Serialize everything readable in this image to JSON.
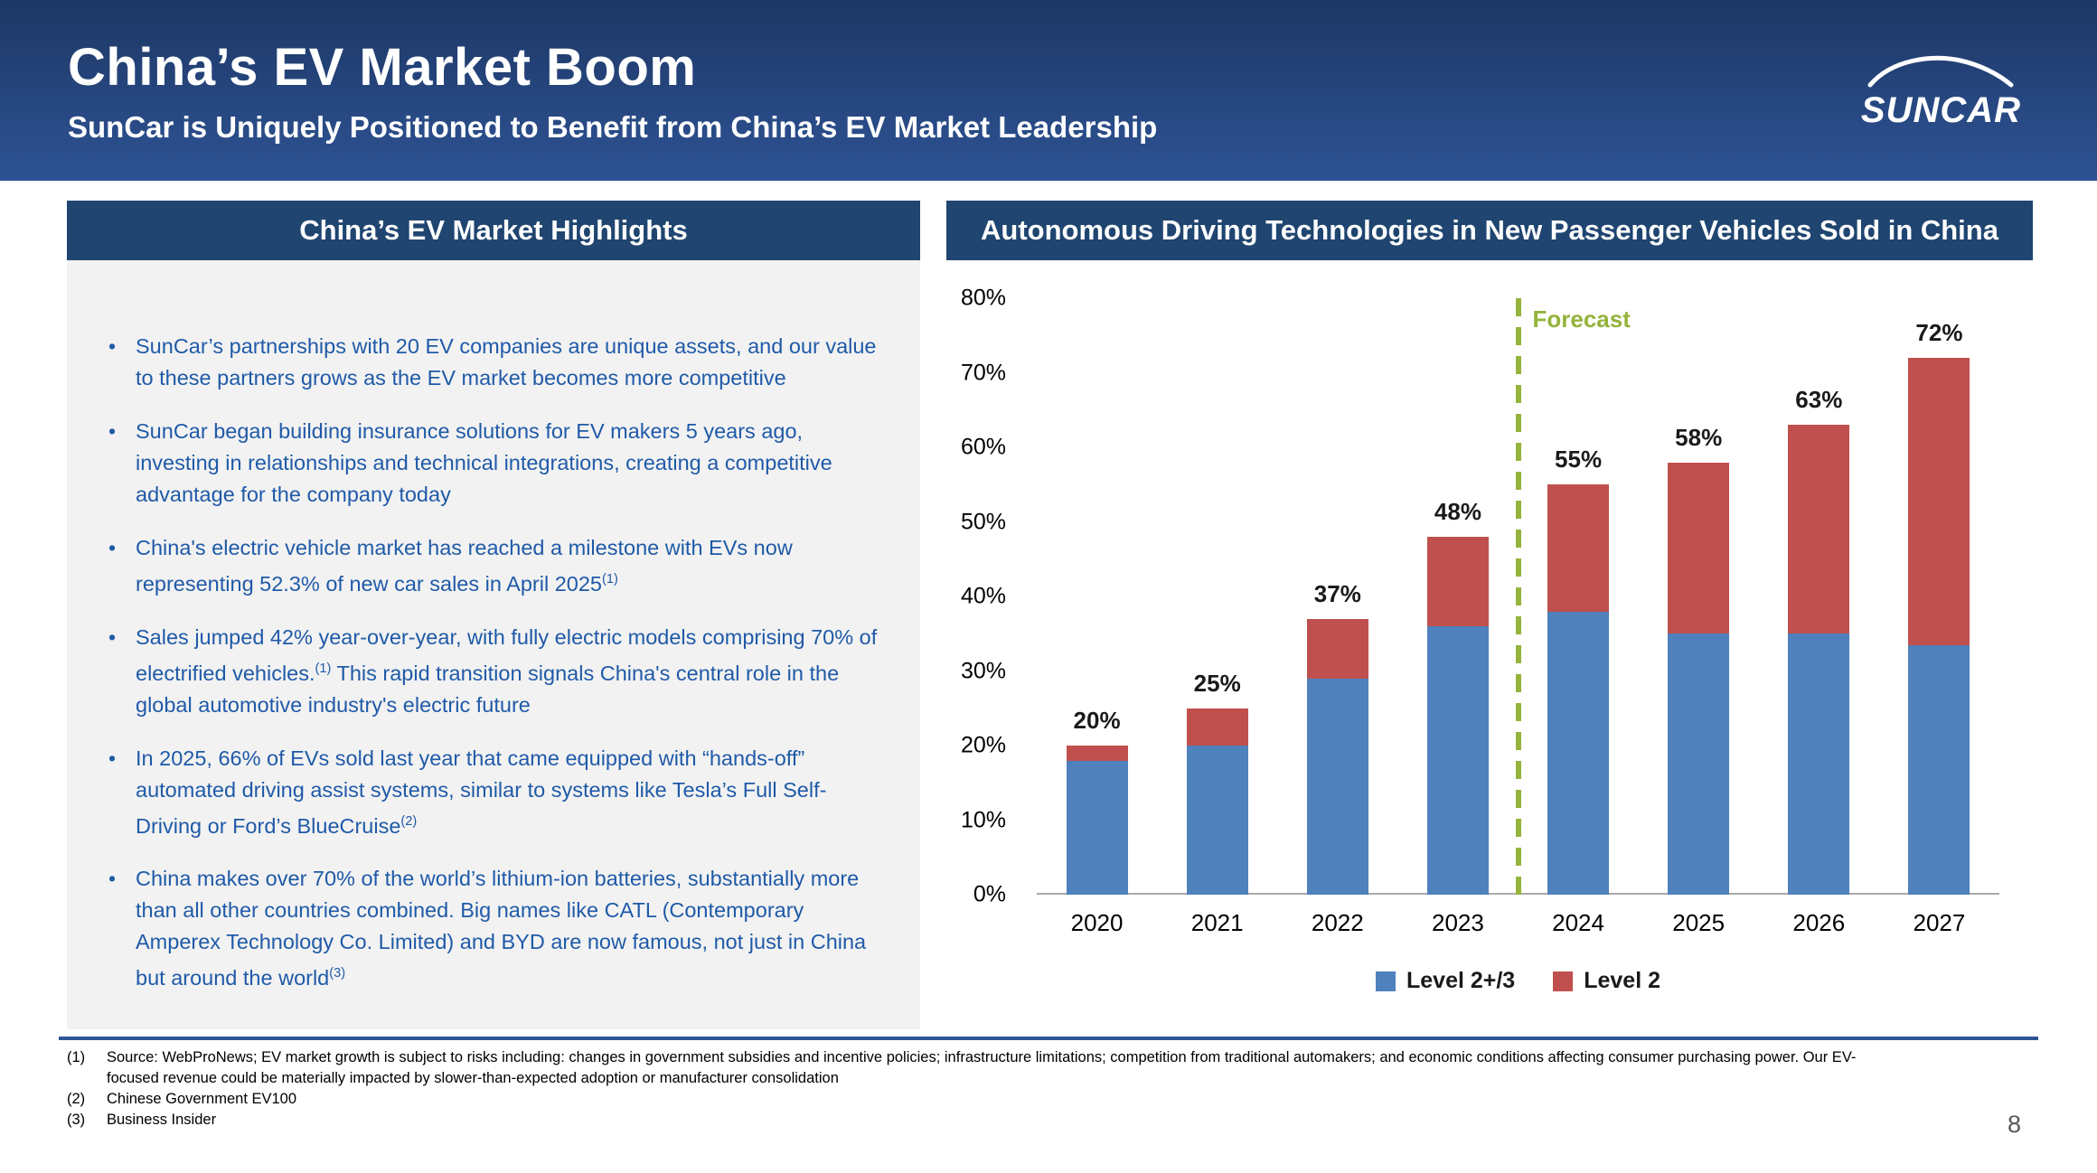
{
  "slide": {
    "title": "China’s EV Market Boom",
    "subtitle": "SunCar is Uniquely Positioned to Benefit from China’s EV Market Leadership",
    "logo_text": "SUNCAR",
    "page_number": "8"
  },
  "highlights": {
    "header": "China’s EV Market Highlights",
    "bullets": [
      {
        "segments": [
          {
            "t": "SunCar’s partnerships with 20 EV companies are unique assets, and our value to these partners grows as the EV market becomes more competitive"
          }
        ]
      },
      {
        "segments": [
          {
            "t": "SunCar began building insurance solutions for EV makers 5 years ago, investing in relationships and technical integrations, creating a competitive advantage for the company today"
          }
        ]
      },
      {
        "segments": [
          {
            "t": "China's electric vehicle market has reached a milestone with EVs now representing 52.3% of new car sales in April 2025"
          },
          {
            "sup": "(1)"
          }
        ]
      },
      {
        "segments": [
          {
            "t": "Sales jumped 42% year-over-year, with fully electric models comprising 70% of electrified vehicles."
          },
          {
            "sup": "(1)"
          },
          {
            "t": " This rapid transition signals China's central role in the global automotive industry's electric future"
          }
        ]
      },
      {
        "segments": [
          {
            "t": "In 2025, 66% of EVs sold last year that came equipped with “hands-off” automated driving assist systems, similar to systems like Tesla’s Full Self-Driving or Ford’s BlueCruise"
          },
          {
            "sup": "(2)"
          }
        ]
      },
      {
        "segments": [
          {
            "t": "China makes over 70% of the world’s lithium-ion batteries, substantially more than all other countries combined. Big names like CATL (Contemporary Amperex Technology Co. Limited) and BYD are now famous, not just in China but around the world"
          },
          {
            "sup": "(3)"
          }
        ]
      }
    ]
  },
  "chart_data": {
    "type": "bar",
    "stacked": true,
    "title": "Autonomous Driving Technologies in New Passenger Vehicles Sold in China",
    "categories": [
      "2020",
      "2021",
      "2022",
      "2023",
      "2024",
      "2025",
      "2026",
      "2027"
    ],
    "series": [
      {
        "name": "Level 2+/3",
        "color": "#4f81bd",
        "values": [
          18,
          20,
          29,
          36,
          38,
          35,
          35,
          33.5
        ]
      },
      {
        "name": "Level 2",
        "color": "#c0504d",
        "values": [
          2,
          5,
          8,
          12,
          17,
          23,
          28,
          38.5
        ]
      }
    ],
    "totals_labels": [
      "20%",
      "25%",
      "37%",
      "48%",
      "55%",
      "58%",
      "63%",
      "72%"
    ],
    "ylim": [
      0,
      80
    ],
    "ytick_step": 10,
    "ytick_labels": [
      "0%",
      "10%",
      "20%",
      "30%",
      "40%",
      "50%",
      "60%",
      "70%",
      "80%"
    ],
    "forecast": {
      "label": "Forecast",
      "after_category_index": 3,
      "color": "#94b43b"
    },
    "legend_position": "bottom",
    "grid": false
  },
  "footnotes": [
    {
      "marker": "(1)",
      "text": "Source: WebProNews; EV market growth is subject to risks including: changes in government subsidies and incentive policies; infrastructure limitations; competition from traditional automakers; and economic conditions affecting consumer purchasing power. Our EV-focused revenue could be materially impacted by slower-than-expected adoption or manufacturer consolidation"
    },
    {
      "marker": "(2)",
      "text": "Chinese Government EV100"
    },
    {
      "marker": "(3)",
      "text": "Business Insider"
    }
  ]
}
